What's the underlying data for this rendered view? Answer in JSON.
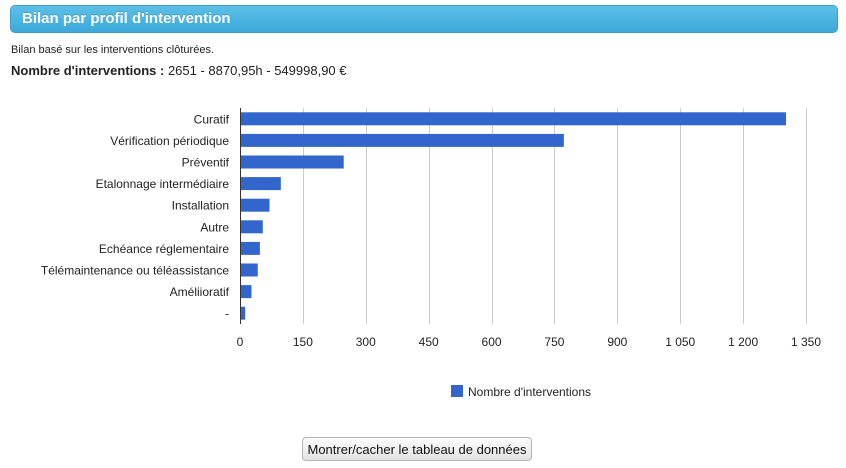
{
  "panel": {
    "title": "Bilan par profil d'intervention",
    "subtitle": "Bilan basé sur les interventions clôturées.",
    "summary_label": "Nombre d'interventions :",
    "summary_value": "2651 - 8870,95h - 549998,90 €"
  },
  "chart_data": {
    "type": "bar",
    "orientation": "horizontal",
    "title": "",
    "xlabel": "",
    "ylabel": "",
    "categories": [
      "Curatif",
      "Vérification périodique",
      "Préventif",
      "Etalonnage intermédiaire",
      "Installation",
      "Autre",
      "Echéance réglementaire",
      "Télémaintenance ou téléassistance",
      "Améliioratif",
      "-"
    ],
    "series": [
      {
        "name": "Nombre d'interventions",
        "color": "#3366cc",
        "values": [
          1300,
          770,
          245,
          95,
          68,
          52,
          45,
          40,
          25,
          10
        ]
      }
    ],
    "xlim": [
      0,
      1350
    ],
    "xticks": [
      0,
      150,
      300,
      450,
      600,
      750,
      900,
      1050,
      1200,
      1350
    ],
    "xtick_labels": [
      "0",
      "150",
      "300",
      "450",
      "600",
      "750",
      "900",
      "1 050",
      "1 200",
      "1 350"
    ],
    "grid": true,
    "legend_position": "bottom"
  },
  "toggle_button": {
    "label": "Montrer/cacher le tableau de données"
  },
  "colors": {
    "header": "#45b3e0",
    "bar": "#3366cc"
  }
}
